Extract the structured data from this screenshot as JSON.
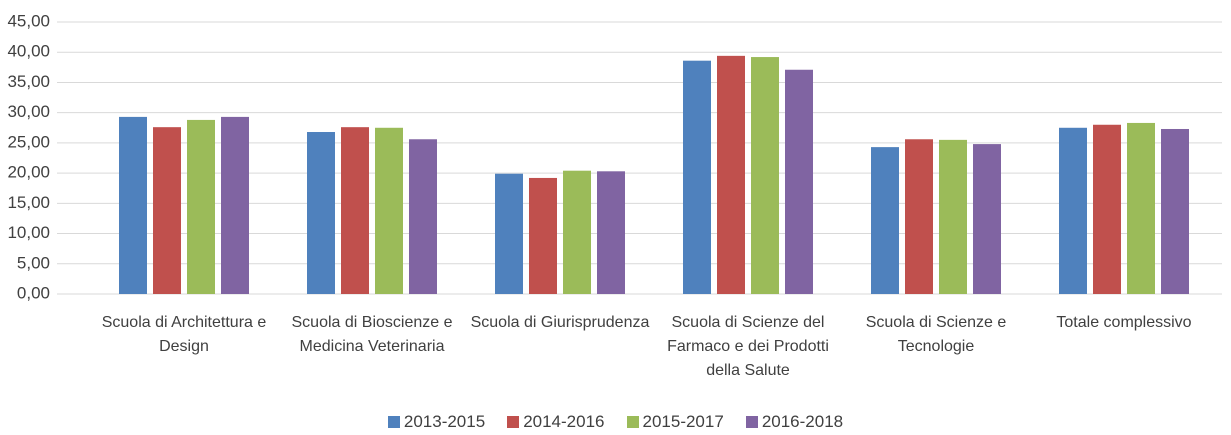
{
  "chart_data": {
    "type": "bar",
    "categories": [
      "Scuola di Architettura e Design",
      "Scuola di Bioscienze e Medicina Veterinaria",
      "Scuola di Giurisprudenza",
      "Scuola di Scienze del Farmaco e dei Prodotti della Salute",
      "Scuola di Scienze e Tecnologie",
      "Totale complessivo"
    ],
    "series": [
      {
        "name": "2013-2015",
        "color": "#4f81bd",
        "values": [
          29.3,
          26.8,
          19.9,
          38.6,
          24.3,
          27.5
        ]
      },
      {
        "name": "2014-2016",
        "color": "#c0504d",
        "values": [
          27.6,
          27.6,
          19.2,
          39.4,
          25.6,
          28.0
        ]
      },
      {
        "name": "2015-2017",
        "color": "#9bbb59",
        "values": [
          28.8,
          27.5,
          20.4,
          39.2,
          25.5,
          28.3
        ]
      },
      {
        "name": "2016-2018",
        "color": "#8064a2",
        "values": [
          29.3,
          25.6,
          20.3,
          37.1,
          24.8,
          27.3
        ]
      }
    ],
    "ylim": [
      0,
      45
    ],
    "yticks": [
      {
        "value": 0,
        "label": "0,00"
      },
      {
        "value": 5,
        "label": "5,00"
      },
      {
        "value": 10,
        "label": "10,00"
      },
      {
        "value": 15,
        "label": "15,00"
      },
      {
        "value": 20,
        "label": "20,00"
      },
      {
        "value": 25,
        "label": "25,00"
      },
      {
        "value": 30,
        "label": "30,00"
      },
      {
        "value": 35,
        "label": "35,00"
      },
      {
        "value": 40,
        "label": "40,00"
      },
      {
        "value": 45,
        "label": "45,00"
      }
    ],
    "grid": true,
    "legend": "bottom"
  }
}
